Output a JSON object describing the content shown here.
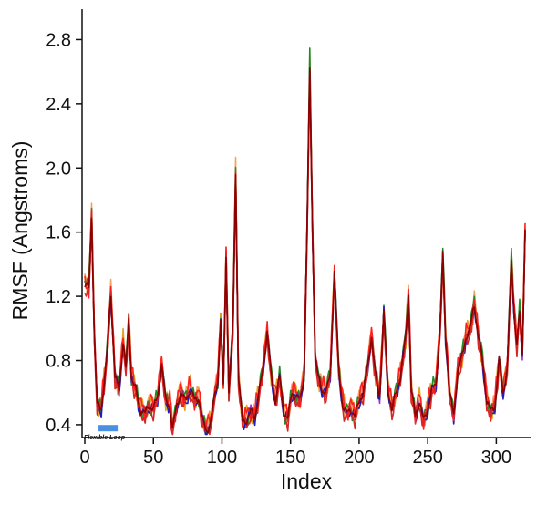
{
  "chart_data": {
    "type": "line",
    "xlabel": "Index",
    "ylabel": "RMSF (Angstroms)",
    "xlim": [
      -2,
      325
    ],
    "ylim": [
      0.32,
      2.99
    ],
    "x_ticks": [
      0,
      50,
      100,
      150,
      200,
      250,
      300
    ],
    "y_ticks": [
      0.4,
      0.8,
      1.2,
      1.6,
      2.0,
      2.4,
      2.8
    ],
    "y_tick_labels": [
      "0.4",
      "0.8",
      "1.2",
      "1.6",
      "2.0",
      "2.4",
      "2.8"
    ],
    "grid": false,
    "legend": "none",
    "annotation": {
      "label": "Flexible Loop",
      "x_start": 10,
      "x_end": 24,
      "y": 0.37,
      "color": "#4a90e2"
    },
    "keypoints": [
      [
        0,
        1.28
      ],
      [
        3,
        1.25
      ],
      [
        5,
        1.7
      ],
      [
        7,
        0.95
      ],
      [
        9,
        0.52
      ],
      [
        12,
        0.5
      ],
      [
        16,
        0.82
      ],
      [
        19,
        1.22
      ],
      [
        22,
        0.7
      ],
      [
        25,
        0.62
      ],
      [
        28,
        0.92
      ],
      [
        30,
        0.75
      ],
      [
        32,
        1.05
      ],
      [
        34,
        0.7
      ],
      [
        37,
        0.62
      ],
      [
        40,
        0.5
      ],
      [
        44,
        0.47
      ],
      [
        47,
        0.52
      ],
      [
        50,
        0.5
      ],
      [
        53,
        0.57
      ],
      [
        56,
        0.78
      ],
      [
        59,
        0.55
      ],
      [
        62,
        0.52
      ],
      [
        64,
        0.37
      ],
      [
        67,
        0.52
      ],
      [
        70,
        0.6
      ],
      [
        73,
        0.55
      ],
      [
        77,
        0.62
      ],
      [
        80,
        0.55
      ],
      [
        83,
        0.57
      ],
      [
        86,
        0.42
      ],
      [
        89,
        0.36
      ],
      [
        92,
        0.42
      ],
      [
        95,
        0.6
      ],
      [
        97,
        0.68
      ],
      [
        99,
        1.05
      ],
      [
        101,
        0.65
      ],
      [
        103,
        1.45
      ],
      [
        105,
        0.6
      ],
      [
        108,
        1.0
      ],
      [
        110,
        1.98
      ],
      [
        112,
        0.7
      ],
      [
        115,
        0.42
      ],
      [
        118,
        0.43
      ],
      [
        121,
        0.48
      ],
      [
        124,
        0.45
      ],
      [
        127,
        0.6
      ],
      [
        130,
        0.75
      ],
      [
        133,
        0.98
      ],
      [
        136,
        0.7
      ],
      [
        139,
        0.55
      ],
      [
        142,
        0.7
      ],
      [
        145,
        0.48
      ],
      [
        148,
        0.44
      ],
      [
        151,
        0.6
      ],
      [
        154,
        0.58
      ],
      [
        157,
        0.55
      ],
      [
        160,
        0.72
      ],
      [
        162,
        1.6
      ],
      [
        164,
        2.62
      ],
      [
        166,
        1.6
      ],
      [
        168,
        0.82
      ],
      [
        170,
        0.7
      ],
      [
        173,
        0.62
      ],
      [
        176,
        0.6
      ],
      [
        179,
        0.72
      ],
      [
        182,
        1.35
      ],
      [
        185,
        0.75
      ],
      [
        188,
        0.52
      ],
      [
        191,
        0.47
      ],
      [
        194,
        0.5
      ],
      [
        197,
        0.45
      ],
      [
        200,
        0.55
      ],
      [
        203,
        0.6
      ],
      [
        206,
        0.75
      ],
      [
        209,
        0.95
      ],
      [
        212,
        0.7
      ],
      [
        215,
        0.58
      ],
      [
        218,
        1.1
      ],
      [
        221,
        0.62
      ],
      [
        224,
        0.5
      ],
      [
        227,
        0.6
      ],
      [
        230,
        0.7
      ],
      [
        234,
        0.95
      ],
      [
        236,
        1.22
      ],
      [
        238,
        0.62
      ],
      [
        241,
        0.45
      ],
      [
        244,
        0.55
      ],
      [
        247,
        0.42
      ],
      [
        250,
        0.5
      ],
      [
        253,
        0.62
      ],
      [
        256,
        0.65
      ],
      [
        259,
        1.0
      ],
      [
        261,
        1.45
      ],
      [
        263,
        0.95
      ],
      [
        266,
        0.6
      ],
      [
        269,
        0.45
      ],
      [
        272,
        0.75
      ],
      [
        275,
        0.82
      ],
      [
        278,
        0.95
      ],
      [
        281,
        1.0
      ],
      [
        284,
        1.15
      ],
      [
        287,
        0.95
      ],
      [
        290,
        0.8
      ],
      [
        293,
        0.55
      ],
      [
        296,
        0.48
      ],
      [
        299,
        0.52
      ],
      [
        302,
        0.8
      ],
      [
        305,
        0.6
      ],
      [
        308,
        0.75
      ],
      [
        311,
        1.42
      ],
      [
        313,
        1.1
      ],
      [
        315,
        0.9
      ],
      [
        317,
        1.1
      ],
      [
        319,
        0.85
      ],
      [
        321,
        1.62
      ]
    ],
    "series": [
      {
        "color": "#9b30d9",
        "amp": 1.0,
        "offset": 0.0,
        "noise": 0.03
      },
      {
        "color": "#e8a020",
        "amp": 0.97,
        "offset": 0.02,
        "noise": 0.05
      },
      {
        "color": "#f4a261",
        "amp": 1.02,
        "offset": 0.01,
        "noise": 0.04
      },
      {
        "color": "#228b22",
        "amp": 1.03,
        "offset": 0.0,
        "noise": 0.04
      },
      {
        "color": "#1f1fbf",
        "amp": 1.0,
        "offset": -0.01,
        "noise": 0.03
      },
      {
        "color": "#ff2020",
        "amp": 0.98,
        "offset": 0.02,
        "noise": 0.05
      },
      {
        "color": "#d62728",
        "amp": 1.0,
        "offset": -0.02,
        "noise": 0.04
      },
      {
        "color": "#8b0000",
        "amp": 1.0,
        "offset": 0.0,
        "noise": 0.02
      }
    ]
  }
}
